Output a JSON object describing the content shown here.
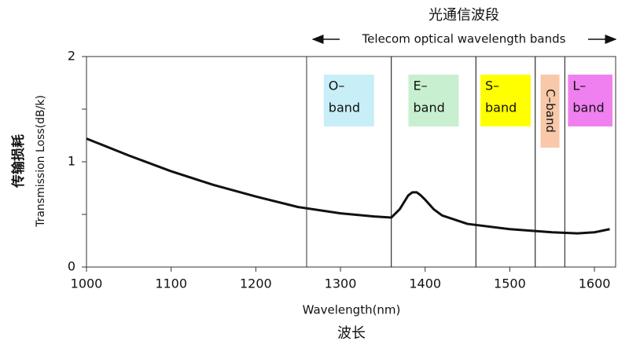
{
  "chart_data": {
    "type": "line",
    "title": "光通信波段",
    "subtitle": "Telecom optical wavelength bands",
    "ylabel_cn": "传输损耗",
    "ylabel": "Transmission Loss(dB/k)",
    "xlabel": "Wavelength(nm)",
    "xlabel_cn": "波长",
    "x": [
      1000,
      1050,
      1100,
      1150,
      1200,
      1250,
      1300,
      1340,
      1360,
      1370,
      1380,
      1385,
      1390,
      1395,
      1400,
      1410,
      1420,
      1450,
      1500,
      1550,
      1580,
      1600,
      1618
    ],
    "values": [
      1.22,
      1.06,
      0.91,
      0.78,
      0.67,
      0.57,
      0.51,
      0.48,
      0.47,
      0.55,
      0.68,
      0.71,
      0.71,
      0.68,
      0.64,
      0.55,
      0.49,
      0.41,
      0.36,
      0.33,
      0.32,
      0.33,
      0.36
    ],
    "color": "#111111",
    "xlim": [
      1000,
      1625
    ],
    "ylim": [
      0,
      2
    ],
    "xticks": [
      1000,
      1100,
      1200,
      1300,
      1400,
      1500,
      1600
    ],
    "yticks": [
      0,
      1,
      2
    ],
    "yminorticks": [
      0.5,
      1.5
    ],
    "bands": [
      {
        "label": [
          "O–",
          "band"
        ],
        "range": [
          1260,
          1360
        ],
        "color": "#c8eef8"
      },
      {
        "label": [
          "E–",
          "band"
        ],
        "range": [
          1360,
          1460
        ],
        "color": "#c8f0d0"
      },
      {
        "label": [
          "S–",
          "band"
        ],
        "range": [
          1460,
          1530
        ],
        "color": "#ffff00"
      },
      {
        "label": [
          "C–band"
        ],
        "range": [
          1530,
          1565
        ],
        "color": "#f8c8a8",
        "vertical": true
      },
      {
        "label": [
          "L–",
          "band"
        ],
        "range": [
          1565,
          1625
        ],
        "color": "#f080f0"
      }
    ]
  }
}
